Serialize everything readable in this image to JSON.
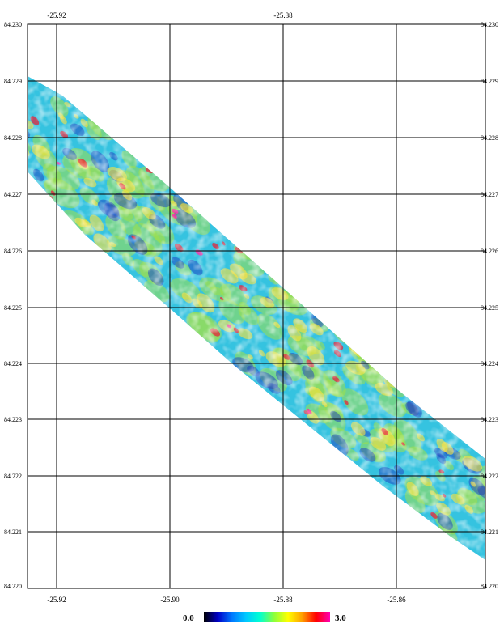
{
  "map": {
    "top_labels": [
      "-25.92",
      "-25.88"
    ],
    "bottom_labels": [
      "-25.92",
      "-25.90",
      "-25.88",
      "-25.86"
    ],
    "left_labels": [
      "84.230",
      "84.229",
      "84.228",
      "84.227",
      "84.226",
      "84.225",
      "84.224",
      "84.223",
      "84.222",
      "84.221",
      "84.220"
    ],
    "right_labels": [
      "84.230",
      "84.229",
      "84.228",
      "84.227",
      "84.226",
      "84.225",
      "84.224",
      "84.223",
      "84.222",
      "84.221",
      "84.220"
    ],
    "colors": {
      "grid": "#000000",
      "swath_base": "#35c3e0",
      "low": "#1f3dbf",
      "mid": "#9fe04a",
      "high": "#ffe33a",
      "peak": "#e8233a",
      "max": "#ff2aa8"
    }
  },
  "colorbar": {
    "min_label": "0.0",
    "max_label": "3.0",
    "stops": [
      "#000000",
      "#0000c8",
      "#0078ff",
      "#00c8ff",
      "#00ffd2",
      "#8cff3c",
      "#ffff00",
      "#ffa000",
      "#ff0000",
      "#ff00b4"
    ]
  }
}
